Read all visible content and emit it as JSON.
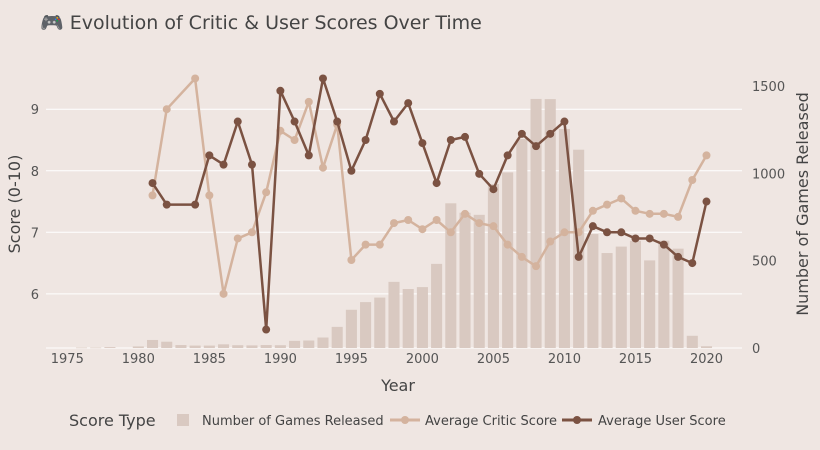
{
  "colors": {
    "background": "#efe6e2",
    "bars": "#d9c9c1",
    "critic": "#d4b39e",
    "user": "#7b5242",
    "grid": "#ffffff"
  },
  "chart_data": {
    "type": "bar+line",
    "title": "🎮 Evolution of Critic & User Scores Over Time",
    "title_icon": "game-controller-icon",
    "xlabel": "Year",
    "ylabel": "Score (0-10)",
    "y2label": "Number of Games Released",
    "xlim": [
      1973.5,
      2022.5
    ],
    "ylim": [
      5.12,
      9.8
    ],
    "y2lim": [
      0,
      1650
    ],
    "x_ticks": [
      1975,
      1980,
      1985,
      1990,
      1995,
      2000,
      2005,
      2010,
      2015,
      2020
    ],
    "y_ticks": [
      6,
      7,
      8,
      9
    ],
    "y2_ticks": [
      0,
      500,
      1000,
      1500
    ],
    "grid": true,
    "legend": {
      "title": "Score Type",
      "placement": "bottom",
      "entries": [
        "Number of Games Released",
        "Average Critic Score",
        "Average User Score"
      ]
    },
    "bars": {
      "name": "Number of Games Released",
      "x": [
        1976,
        1977,
        1978,
        1980,
        1981,
        1982,
        1983,
        1984,
        1985,
        1986,
        1987,
        1988,
        1989,
        1990,
        1991,
        1992,
        1993,
        1994,
        1995,
        1996,
        1997,
        1998,
        1999,
        2000,
        2001,
        2002,
        2003,
        2004,
        2005,
        2006,
        2007,
        2008,
        2009,
        2010,
        2011,
        2012,
        2013,
        2014,
        2015,
        2016,
        2017,
        2018,
        2019,
        2020
      ],
      "values": [
        2,
        2,
        5,
        9,
        46,
        36,
        17,
        14,
        14,
        21,
        16,
        15,
        17,
        16,
        41,
        43,
        60,
        121,
        219,
        263,
        289,
        379,
        338,
        349,
        482,
        829,
        775,
        763,
        939,
        1006,
        1197,
        1427,
        1426,
        1255,
        1136,
        653,
        544,
        581,
        614,
        502,
        615,
        569,
        70,
        10
      ]
    },
    "series": [
      {
        "name": "Average Critic Score",
        "x": [
          1981,
          1982,
          1984,
          1985,
          1986,
          1987,
          1988,
          1989,
          1990,
          1991,
          1992,
          1993,
          1994,
          1995,
          1996,
          1997,
          1998,
          1999,
          2000,
          2001,
          2002,
          2003,
          2004,
          2005,
          2006,
          2007,
          2008,
          2009,
          2010,
          2011,
          2012,
          2013,
          2014,
          2015,
          2016,
          2017,
          2018,
          2019,
          2020
        ],
        "values": [
          7.6,
          9.0,
          9.5,
          7.6,
          6.0,
          6.9,
          7.0,
          7.65,
          8.65,
          8.5,
          9.12,
          8.05,
          8.75,
          6.55,
          6.8,
          6.8,
          7.15,
          7.2,
          7.05,
          7.2,
          7.0,
          7.3,
          7.15,
          7.1,
          6.8,
          6.6,
          6.45,
          6.85,
          7.0,
          7.0,
          7.35,
          7.45,
          7.55,
          7.35,
          7.3,
          7.3,
          7.25,
          7.85,
          8.25
        ]
      },
      {
        "name": "Average User Score",
        "x": [
          1981,
          1982,
          1984,
          1985,
          1986,
          1987,
          1988,
          1989,
          1990,
          1991,
          1992,
          1993,
          1994,
          1995,
          1996,
          1997,
          1998,
          1999,
          2000,
          2001,
          2002,
          2003,
          2004,
          2005,
          2006,
          2007,
          2008,
          2009,
          2010,
          2011,
          2012,
          2013,
          2014,
          2015,
          2016,
          2017,
          2018,
          2019,
          2020
        ],
        "values": [
          7.8,
          7.45,
          7.45,
          8.25,
          8.1,
          8.8,
          8.1,
          5.42,
          9.3,
          8.8,
          8.25,
          9.5,
          8.8,
          8.0,
          8.5,
          9.25,
          8.8,
          9.1,
          8.45,
          7.8,
          8.5,
          8.55,
          7.95,
          7.7,
          8.25,
          8.6,
          8.4,
          8.6,
          8.8,
          6.6,
          7.1,
          7.0,
          7.0,
          6.9,
          6.9,
          6.8,
          6.6,
          6.5,
          7.5
        ]
      }
    ]
  }
}
